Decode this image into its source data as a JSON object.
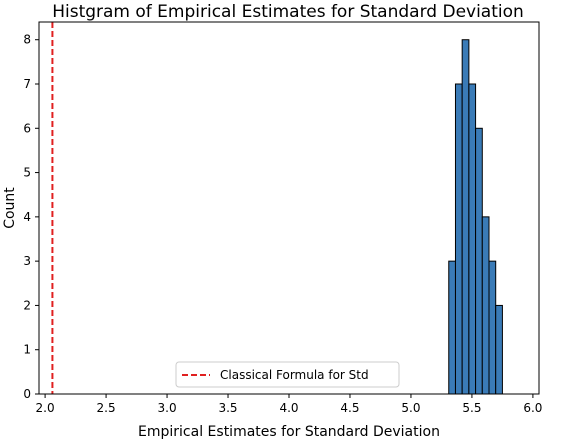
{
  "chart_data": {
    "type": "bar",
    "title": "Histgram of Empirical Estimates for Standard Deviation",
    "xlabel": "Empirical Estimates for Standard Deviation",
    "ylabel": "Count",
    "xlim": [
      1.95,
      6.05
    ],
    "ylim": [
      0,
      8.4
    ],
    "xticks": [
      2.0,
      2.5,
      3.0,
      3.5,
      4.0,
      4.5,
      5.0,
      5.5,
      6.0
    ],
    "xtick_labels": [
      "2.0",
      "2.5",
      "3.0",
      "3.5",
      "4.0",
      "4.5",
      "5.0",
      "5.5",
      "6.0"
    ],
    "yticks": [
      0,
      1,
      2,
      3,
      4,
      5,
      6,
      7,
      8
    ],
    "ytick_labels": [
      "0",
      "1",
      "2",
      "3",
      "4",
      "5",
      "6",
      "7",
      "8"
    ],
    "bins": [
      {
        "x0": 5.31,
        "x1": 5.365,
        "count": 3
      },
      {
        "x0": 5.365,
        "x1": 5.42,
        "count": 7
      },
      {
        "x0": 5.42,
        "x1": 5.475,
        "count": 8
      },
      {
        "x0": 5.475,
        "x1": 5.53,
        "count": 7
      },
      {
        "x0": 5.53,
        "x1": 5.585,
        "count": 6
      },
      {
        "x0": 5.585,
        "x1": 5.64,
        "count": 4
      },
      {
        "x0": 5.64,
        "x1": 5.695,
        "count": 3
      },
      {
        "x0": 5.695,
        "x1": 5.75,
        "count": 2
      }
    ],
    "reference_line": {
      "x": 2.06,
      "label": "Classical Formula for Std",
      "style": "dashed"
    },
    "bar_color": "#3a7bb7",
    "line_color": "#e02020",
    "grid": false,
    "legend_position": "bottom-center"
  }
}
